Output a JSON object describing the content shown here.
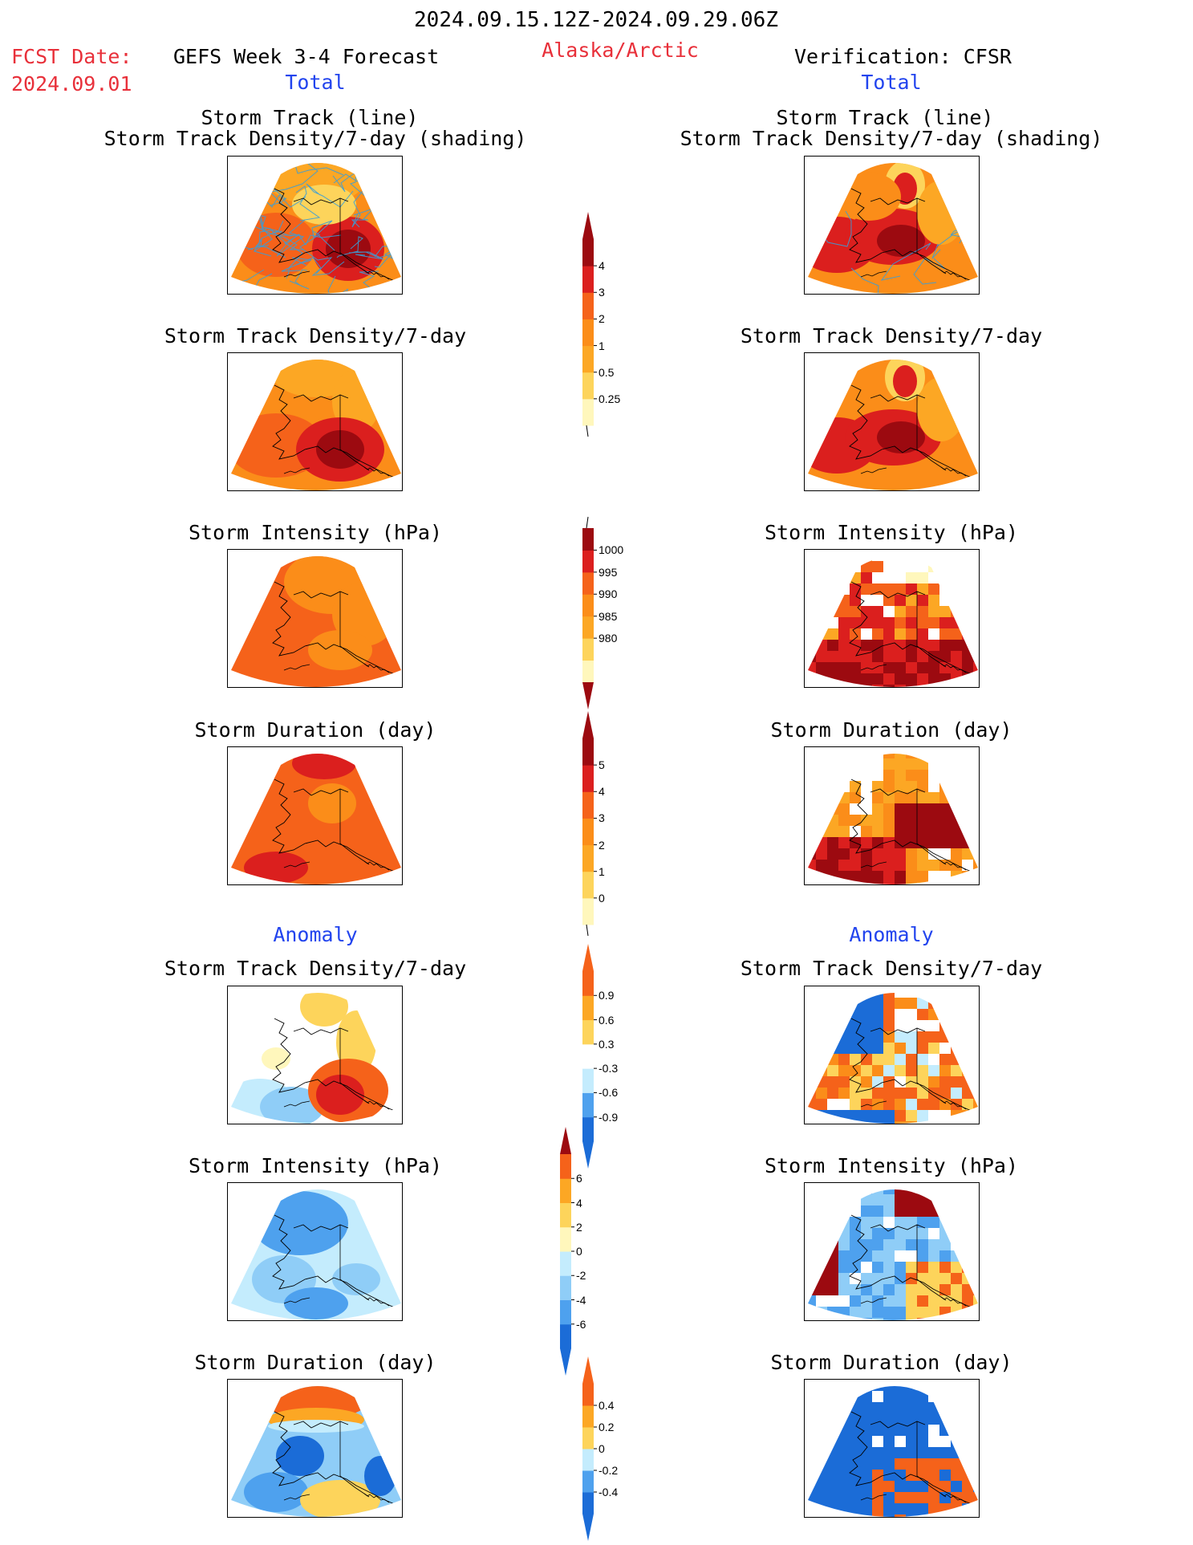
{
  "header": {
    "date_range": "2024.09.15.12Z-2024.09.29.06Z",
    "fcst_label": "FCST Date:",
    "fcst_date": "2024.09.01",
    "model": "GEFS Week 3-4 Forecast",
    "region": "Alaska/Arctic",
    "verification": "Verification: CFSR"
  },
  "columns": {
    "left_total": "Total",
    "right_total": "Total",
    "left_anomaly": "Anomaly",
    "right_anomaly": "Anomaly"
  },
  "panel_titles": {
    "track_line": "Storm Track (line)",
    "track_shading": "Storm Track Density/7-day (shading)",
    "density": "Storm Track Density/7-day",
    "intensity": "Storm Intensity (hPa)",
    "duration": "Storm Duration (day)"
  },
  "colorbars": {
    "density_total": [
      "4",
      "3",
      "2",
      "1",
      "0.5",
      "0.25"
    ],
    "intensity_total": [
      "1000",
      "995",
      "990",
      "985",
      "980"
    ],
    "duration_total": [
      "5",
      "4",
      "3",
      "2",
      "1",
      "0"
    ],
    "density_anomaly": [
      "0.9",
      "0.6",
      "0.3",
      "-0.3",
      "-0.6",
      "-0.9"
    ],
    "intensity_anomaly": [
      "6",
      "4",
      "2",
      "0",
      "-2",
      "-4",
      "-6"
    ],
    "duration_anomaly": [
      "0.4",
      "0.2",
      "0",
      "-0.2",
      "-0.4"
    ]
  },
  "colors": {
    "title_red": "#e8303a",
    "title_blue": "#2244ee",
    "warm": [
      "#fff7bc",
      "#fdd45b",
      "#fca724",
      "#fb8d19",
      "#f5621a",
      "#db1f1e",
      "#9c0a10"
    ],
    "cool": [
      "#c4ecfd",
      "#8fcdf7",
      "#4ea1ee",
      "#1b6cd7"
    ],
    "track_line": "#3a9ed8"
  }
}
